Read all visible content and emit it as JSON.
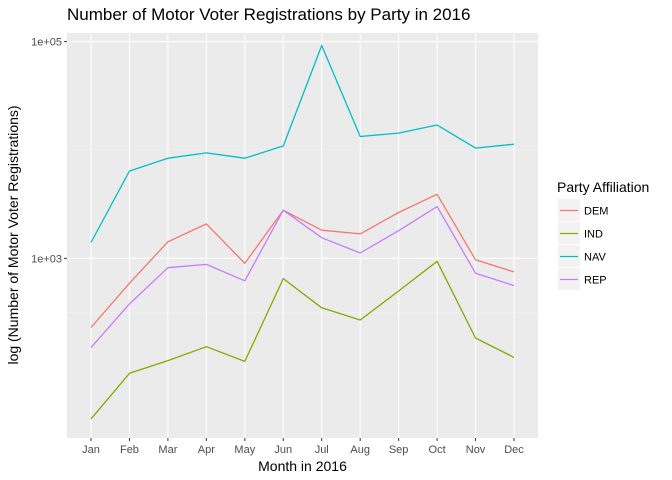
{
  "chart_data": {
    "type": "line",
    "title": "Number of Motor Voter Registrations by Party in 2016",
    "xlabel": "Month in 2016",
    "ylabel": "log (Number of Motor Voter Registrations)",
    "y_scale": "log10",
    "ylim": [
      22,
      120000
    ],
    "yticks": [
      1000,
      100000
    ],
    "ytick_labels": [
      "1e+03",
      "1e+05"
    ],
    "grid": true,
    "legend_title": "Party Affiliation",
    "legend_position": "right",
    "categories": [
      "Jan",
      "Feb",
      "Mar",
      "Apr",
      "May",
      "Jun",
      "Jul",
      "Aug",
      "Sep",
      "Oct",
      "Nov",
      "Dec"
    ],
    "series": [
      {
        "name": "DEM",
        "color": "#F8766D",
        "values": [
          230,
          590,
          1420,
          2080,
          900,
          2780,
          1820,
          1680,
          2650,
          3900,
          970,
          750
        ]
      },
      {
        "name": "IND",
        "color": "#7CAE00",
        "values": [
          33,
          87,
          114,
          153,
          112,
          650,
          350,
          270,
          500,
          940,
          184,
          122
        ]
      },
      {
        "name": "NAV",
        "color": "#00BFC4",
        "values": [
          1400,
          6400,
          8400,
          9400,
          8400,
          10900,
          92000,
          13300,
          14300,
          17000,
          10400,
          11300
        ]
      },
      {
        "name": "REP",
        "color": "#C77CFF",
        "values": [
          150,
          380,
          820,
          880,
          620,
          2780,
          1550,
          1120,
          1800,
          3000,
          730,
          560
        ]
      }
    ]
  }
}
